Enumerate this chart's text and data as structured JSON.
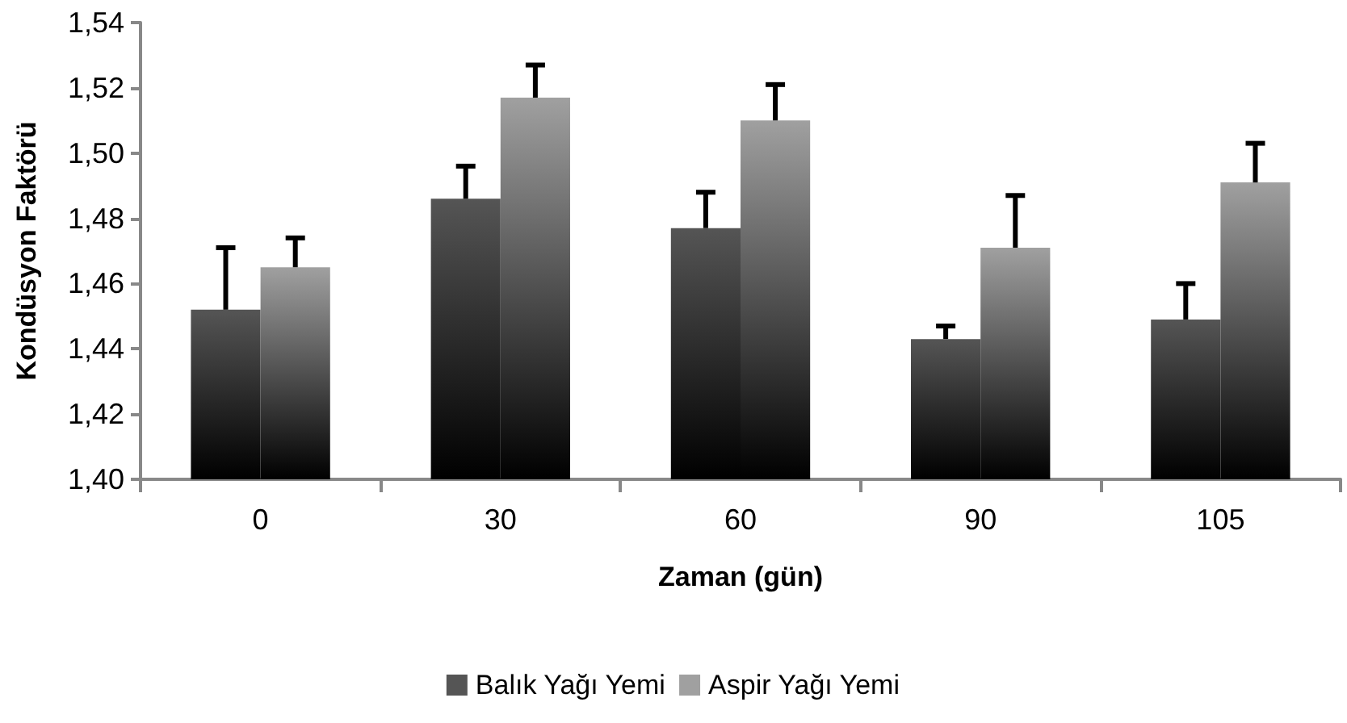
{
  "chart_data": {
    "type": "bar",
    "xlabel": "Zaman (gün)",
    "ylabel": "Kondüsyon Faktörü",
    "categories": [
      "0",
      "30",
      "60",
      "90",
      "105"
    ],
    "series": [
      {
        "name": "Balık Yağı Yemi",
        "color": "#555555",
        "values": [
          1.452,
          1.486,
          1.477,
          1.443,
          1.449
        ],
        "errors": [
          [
            1.452,
            1.471
          ],
          [
            1.486,
            1.496
          ],
          [
            1.477,
            1.488
          ],
          [
            1.443,
            1.447
          ],
          [
            1.449,
            1.46
          ]
        ]
      },
      {
        "name": "Aspir Yağı Yemi",
        "color": "#a0a0a0",
        "values": [
          1.465,
          1.517,
          1.51,
          1.471,
          1.491
        ],
        "errors": [
          [
            1.465,
            1.474
          ],
          [
            1.517,
            1.527
          ],
          [
            1.51,
            1.521
          ],
          [
            1.471,
            1.487
          ],
          [
            1.491,
            1.503
          ]
        ]
      }
    ],
    "ylim": [
      1.4,
      1.54
    ],
    "yticks": [
      {
        "value": 1.4,
        "label": "1,40"
      },
      {
        "value": 1.42,
        "label": "1,42"
      },
      {
        "value": 1.44,
        "label": "1,44"
      },
      {
        "value": 1.46,
        "label": "1,46"
      },
      {
        "value": 1.48,
        "label": "1,48"
      },
      {
        "value": 1.5,
        "label": "1,50"
      },
      {
        "value": 1.52,
        "label": "1,52"
      },
      {
        "value": 1.54,
        "label": "1,54"
      }
    ],
    "grid": false,
    "legend": "bottom"
  }
}
